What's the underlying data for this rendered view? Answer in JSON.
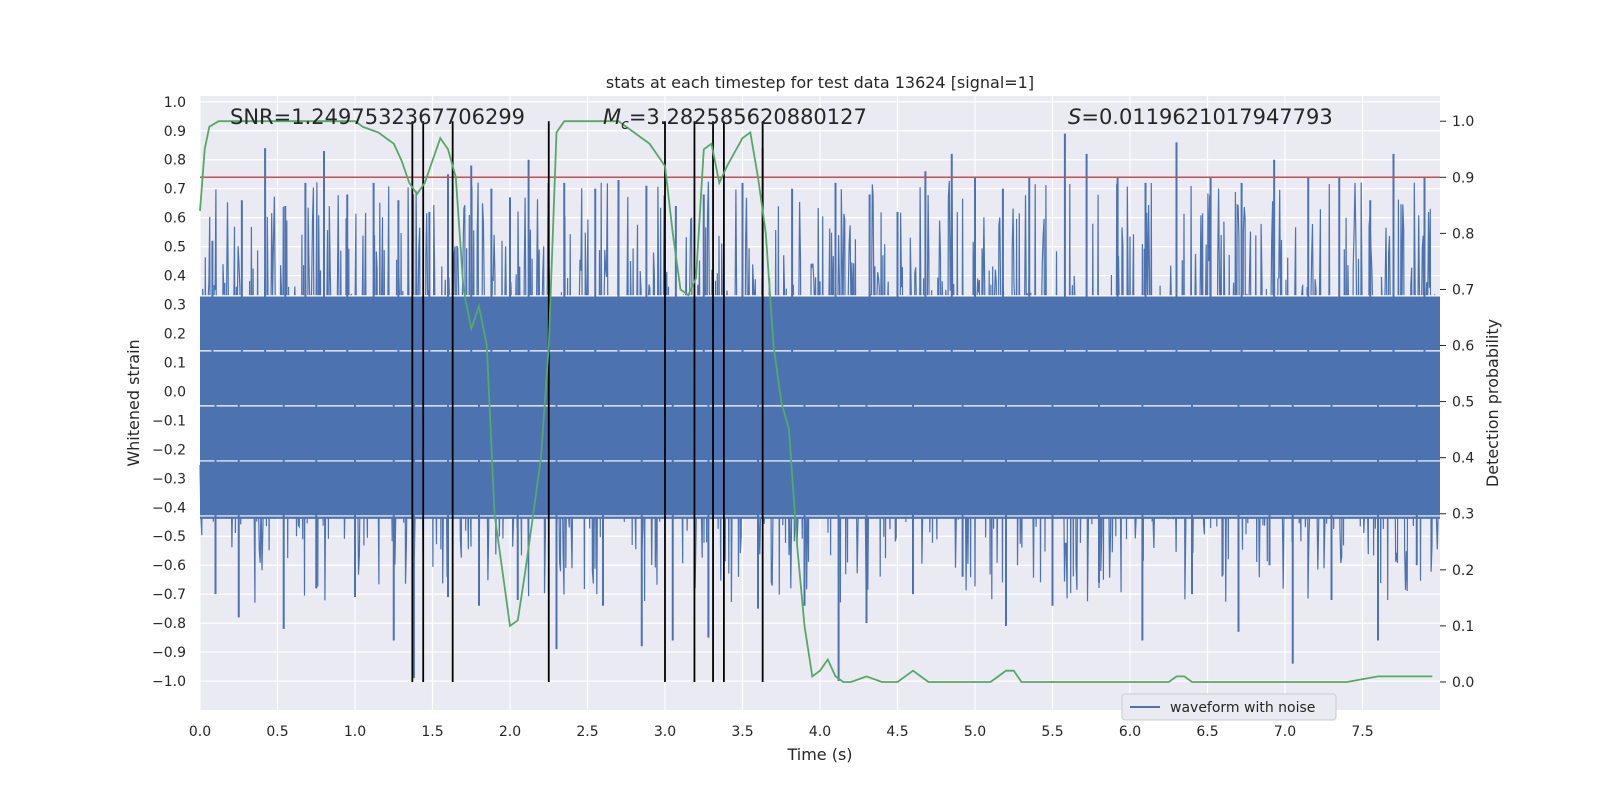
{
  "chart_data": {
    "type": "line",
    "title": "stats at each timestep for test data 13624 [signal=1]",
    "xlabel": "Time (s)",
    "ylabel_left": "Whitened strain",
    "ylabel_right": "Detection probability",
    "xlim": [
      0.0,
      8.0
    ],
    "ylim_left": [
      -1.1,
      1.02
    ],
    "ylim_right": [
      -0.05,
      1.045
    ],
    "x_ticks": [
      "0.0",
      "0.5",
      "1.0",
      "1.5",
      "2.0",
      "2.5",
      "3.0",
      "3.5",
      "4.0",
      "4.5",
      "5.0",
      "5.5",
      "6.0",
      "6.5",
      "7.0",
      "7.5"
    ],
    "y_ticks_left": [
      "1.0",
      "0.9",
      "0.8",
      "0.7",
      "0.6",
      "0.5",
      "0.4",
      "0.3",
      "0.2",
      "0.1",
      "0.0",
      "−0.1",
      "−0.2",
      "−0.3",
      "−0.4",
      "−0.5",
      "−0.6",
      "−0.7",
      "−0.8",
      "−0.9",
      "−1.0"
    ],
    "y_ticks_right": [
      "1.0",
      "0.9",
      "0.8",
      "0.7",
      "0.6",
      "0.5",
      "0.4",
      "0.3",
      "0.2",
      "0.1",
      "0.0"
    ],
    "grid": true,
    "legend": {
      "position": "lower-right",
      "entries": [
        "waveform with noise"
      ]
    },
    "annotations": {
      "snr": "SNR=1.2497532367706299",
      "mc_symbol": "M",
      "mc_sub": "c",
      "mc_value": "=3.282585620880127",
      "s_symbol": "S",
      "s_value": "=0.0119621017947793"
    },
    "colors": {
      "waveform": "#4c72b0",
      "probability": "#55a868",
      "threshold": "#c44e52",
      "markers": "#000000",
      "background": "#eaeaf2",
      "grid": "#ffffff"
    },
    "threshold_probability": 0.9,
    "vertical_markers_s": [
      1.37,
      1.44,
      1.63,
      2.25,
      3.0,
      3.19,
      3.31,
      3.38,
      3.63
    ],
    "waveform_with_noise": {
      "description_range": [
        -1.0,
        0.9
      ],
      "duration_s": 8.0,
      "peaks_up": [
        [
          0.08,
          0.52
        ],
        [
          0.27,
          0.66
        ],
        [
          0.42,
          0.84
        ],
        [
          0.55,
          0.64
        ],
        [
          0.68,
          0.72
        ],
        [
          0.8,
          0.83
        ],
        [
          0.95,
          0.68
        ],
        [
          1.12,
          0.72
        ],
        [
          1.28,
          0.66
        ],
        [
          1.48,
          0.62
        ],
        [
          1.6,
          0.75
        ],
        [
          1.75,
          0.78
        ],
        [
          1.88,
          0.7
        ],
        [
          2.0,
          0.67
        ],
        [
          2.12,
          0.8
        ],
        [
          2.35,
          0.72
        ],
        [
          2.55,
          0.7
        ],
        [
          2.7,
          0.73
        ],
        [
          2.88,
          0.71
        ],
        [
          3.07,
          0.64
        ],
        [
          3.25,
          0.68
        ],
        [
          3.5,
          0.72
        ],
        [
          3.63,
          0.84
        ],
        [
          3.82,
          0.7
        ],
        [
          4.1,
          0.72
        ],
        [
          4.32,
          0.68
        ],
        [
          4.5,
          0.62
        ],
        [
          4.68,
          0.76
        ],
        [
          4.85,
          0.82
        ],
        [
          5.0,
          0.74
        ],
        [
          5.18,
          0.7
        ],
        [
          5.35,
          0.74
        ],
        [
          5.58,
          0.89
        ],
        [
          5.72,
          0.82
        ],
        [
          5.92,
          0.74
        ],
        [
          6.1,
          0.72
        ],
        [
          6.3,
          0.86
        ],
        [
          6.52,
          0.74
        ],
        [
          6.72,
          0.72
        ],
        [
          6.93,
          0.8
        ],
        [
          7.15,
          0.74
        ],
        [
          7.35,
          0.74
        ],
        [
          7.55,
          0.66
        ],
        [
          7.7,
          0.82
        ],
        [
          7.9,
          0.74
        ]
      ],
      "peaks_down": [
        [
          0.1,
          -0.7
        ],
        [
          0.25,
          -0.78
        ],
        [
          0.54,
          -0.82
        ],
        [
          0.75,
          -0.68
        ],
        [
          1.0,
          -0.71
        ],
        [
          1.25,
          -0.86
        ],
        [
          1.38,
          -0.99
        ],
        [
          1.6,
          -0.71
        ],
        [
          1.8,
          -0.74
        ],
        [
          2.05,
          -0.72
        ],
        [
          2.3,
          -0.89
        ],
        [
          2.6,
          -0.74
        ],
        [
          2.85,
          -0.88
        ],
        [
          3.05,
          -0.86
        ],
        [
          3.28,
          -0.85
        ],
        [
          3.6,
          -0.75
        ],
        [
          3.9,
          -0.74
        ],
        [
          4.12,
          -1.0
        ],
        [
          4.3,
          -0.8
        ],
        [
          4.6,
          -0.7
        ],
        [
          4.92,
          -0.64
        ],
        [
          5.2,
          -0.81
        ],
        [
          5.5,
          -0.74
        ],
        [
          5.8,
          -0.66
        ],
        [
          6.08,
          -0.86
        ],
        [
          6.4,
          -0.7
        ],
        [
          6.7,
          -0.83
        ],
        [
          6.9,
          -0.6
        ],
        [
          7.05,
          -0.94
        ],
        [
          7.3,
          -0.72
        ],
        [
          7.6,
          -0.86
        ],
        [
          7.85,
          -0.6
        ]
      ]
    },
    "series": [
      {
        "name": "waveform with noise",
        "axis": "left"
      },
      {
        "axis": "right",
        "x": [
          0.0,
          0.03,
          0.06,
          0.12,
          0.2,
          0.3,
          0.45,
          0.6,
          0.75,
          0.9,
          1.0,
          1.05,
          1.1,
          1.15,
          1.2,
          1.25,
          1.3,
          1.35,
          1.4,
          1.45,
          1.5,
          1.55,
          1.6,
          1.65,
          1.7,
          1.75,
          1.8,
          1.85,
          1.9,
          2.0,
          2.05,
          2.1,
          2.15,
          2.2,
          2.25,
          2.3,
          2.35,
          2.4,
          2.5,
          2.6,
          2.7,
          2.8,
          2.85,
          2.9,
          2.95,
          3.0,
          3.05,
          3.1,
          3.15,
          3.2,
          3.25,
          3.3,
          3.35,
          3.4,
          3.5,
          3.55,
          3.6,
          3.65,
          3.7,
          3.75,
          3.8,
          3.85,
          3.9,
          3.95,
          4.0,
          4.05,
          4.1,
          4.15,
          4.2,
          4.3,
          4.4,
          4.5,
          4.6,
          4.65,
          4.7,
          4.75,
          4.8,
          4.9,
          5.0,
          5.1,
          5.15,
          5.2,
          5.25,
          5.3,
          5.4,
          5.5,
          5.7,
          5.9,
          6.1,
          6.25,
          6.3,
          6.35,
          6.4,
          6.5,
          6.6,
          6.8,
          7.0,
          7.2,
          7.4,
          7.6,
          7.8,
          7.95
        ],
        "values": [
          0.84,
          0.95,
          0.99,
          1.0,
          1.0,
          1.0,
          1.0,
          1.0,
          1.0,
          1.0,
          1.0,
          0.99,
          0.985,
          0.98,
          0.97,
          0.96,
          0.93,
          0.89,
          0.87,
          0.89,
          0.93,
          0.97,
          0.95,
          0.9,
          0.7,
          0.63,
          0.67,
          0.6,
          0.3,
          0.1,
          0.11,
          0.2,
          0.3,
          0.4,
          0.6,
          0.98,
          1.0,
          1.0,
          1.0,
          1.0,
          1.0,
          0.98,
          0.97,
          0.96,
          0.94,
          0.92,
          0.8,
          0.7,
          0.69,
          0.72,
          0.95,
          0.96,
          0.89,
          0.92,
          0.97,
          0.98,
          0.9,
          0.8,
          0.6,
          0.5,
          0.45,
          0.25,
          0.1,
          0.01,
          0.02,
          0.04,
          0.01,
          0.0,
          0.0,
          0.01,
          0.0,
          0.0,
          0.02,
          0.01,
          0.0,
          0.0,
          0.0,
          0.0,
          0.0,
          0.0,
          0.01,
          0.02,
          0.02,
          0.0,
          0.0,
          0.0,
          0.0,
          0.0,
          0.0,
          0.0,
          0.01,
          0.01,
          0.0,
          0.0,
          0.0,
          0.0,
          0.0,
          0.0,
          0.0,
          0.01,
          0.01,
          0.01
        ]
      }
    ]
  }
}
